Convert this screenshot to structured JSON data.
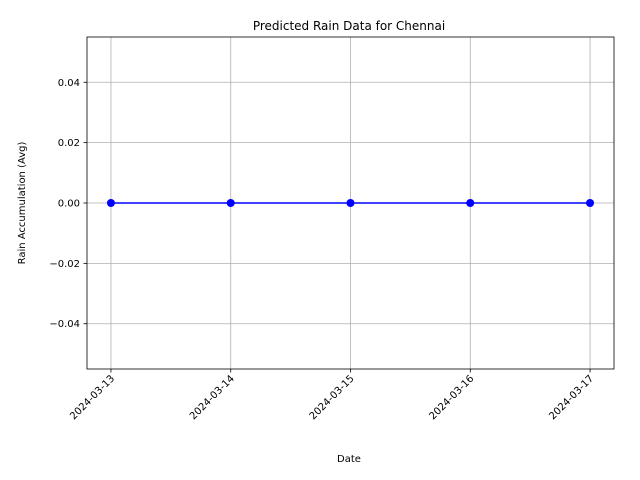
{
  "chart_data": {
    "type": "line",
    "title": "Predicted Rain Data for Chennai",
    "xlabel": "Date",
    "ylabel": "Rain Accumulation (Avg)",
    "x": [
      "2024-03-13",
      "2024-03-14",
      "2024-03-15",
      "2024-03-16",
      "2024-03-17"
    ],
    "series": [
      {
        "values": [
          0,
          0,
          0,
          0,
          0
        ],
        "color": "#0000ff",
        "marker": "circle"
      }
    ],
    "ylim": [
      -0.055,
      0.055
    ],
    "yticks": [
      -0.04,
      -0.02,
      0.0,
      0.02,
      0.04
    ],
    "ytick_labels": [
      "−0.04",
      "−0.02",
      "0.00",
      "0.02",
      "0.04"
    ],
    "xtick_rotation": 45,
    "grid": true,
    "legend": "none"
  }
}
